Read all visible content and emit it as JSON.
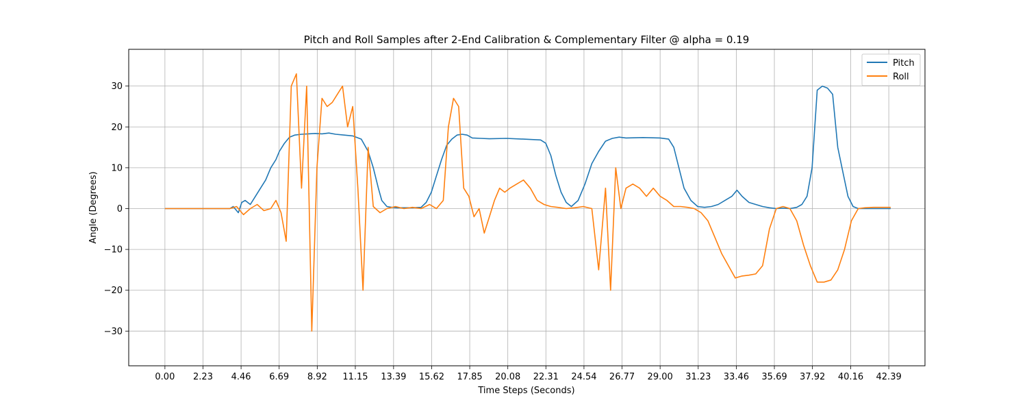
{
  "chart_data": {
    "type": "line",
    "title": "Pitch and Roll Samples after 2-End Calibration & Complementary Filter @ alpha = 0.19",
    "xlabel": "Time Steps (Seconds)",
    "ylabel": "Angle (Degrees)",
    "xlim": [
      -2.12,
      44.51
    ],
    "ylim": [
      -38.5,
      39.0
    ],
    "xticks": [
      0.0,
      2.23,
      4.46,
      6.69,
      8.92,
      11.15,
      13.39,
      15.62,
      17.85,
      20.08,
      22.31,
      24.54,
      26.77,
      29.0,
      31.23,
      33.46,
      35.69,
      37.92,
      40.16,
      42.39
    ],
    "xtick_labels": [
      "0.00",
      "2.23",
      "4.46",
      "6.69",
      "8.92",
      "11.15",
      "13.39",
      "15.62",
      "17.85",
      "20.08",
      "22.31",
      "24.54",
      "26.77",
      "29.00",
      "31.23",
      "33.46",
      "35.69",
      "37.92",
      "40.16",
      "42.39"
    ],
    "yticks": [
      -30,
      -20,
      -10,
      0,
      10,
      20,
      30
    ],
    "ytick_labels": [
      "−30",
      "−20",
      "−10",
      "0",
      "10",
      "20",
      "30"
    ],
    "grid": true,
    "legend_position": "top-right",
    "series": [
      {
        "name": "Pitch",
        "color": "#1f77b4",
        "x": [
          0.0,
          3.8,
          4.0,
          4.3,
          4.5,
          4.7,
          5.0,
          5.3,
          5.6,
          5.9,
          6.2,
          6.5,
          6.7,
          7.0,
          7.3,
          7.6,
          8.0,
          8.4,
          8.8,
          9.2,
          9.6,
          10.0,
          10.5,
          11.0,
          11.5,
          11.9,
          12.2,
          12.5,
          12.7,
          13.0,
          13.3,
          13.6,
          14.0,
          14.5,
          15.0,
          15.3,
          15.6,
          15.9,
          16.2,
          16.5,
          16.8,
          17.1,
          17.4,
          17.7,
          18.0,
          18.5,
          19.0,
          20.0,
          21.0,
          22.0,
          22.3,
          22.6,
          22.9,
          23.2,
          23.5,
          23.8,
          24.2,
          24.6,
          25.0,
          25.4,
          25.8,
          26.2,
          26.6,
          27.0,
          28.0,
          29.0,
          29.5,
          29.8,
          30.1,
          30.4,
          30.8,
          31.2,
          31.6,
          32.0,
          32.4,
          32.8,
          33.2,
          33.5,
          33.8,
          34.2,
          34.6,
          35.0,
          35.4,
          35.8,
          36.2,
          36.6,
          37.0,
          37.3,
          37.6,
          37.9,
          38.2,
          38.5,
          38.8,
          39.1,
          39.4,
          39.7,
          40.0,
          40.3,
          40.6,
          41.0,
          41.5,
          42.0,
          42.5
        ],
        "y": [
          0.0,
          0.0,
          0.5,
          -1.0,
          1.5,
          2.0,
          1.0,
          3.0,
          5.0,
          7.0,
          10.0,
          12.0,
          14.0,
          16.0,
          17.5,
          18.0,
          18.2,
          18.3,
          18.4,
          18.3,
          18.5,
          18.2,
          18.0,
          17.8,
          17.0,
          14.0,
          10.0,
          5.0,
          2.0,
          0.5,
          0.3,
          0.2,
          0.2,
          0.2,
          0.3,
          1.5,
          4.0,
          8.0,
          12.0,
          15.5,
          17.0,
          18.0,
          18.2,
          18.0,
          17.3,
          17.2,
          17.1,
          17.2,
          17.0,
          16.8,
          16.0,
          13.0,
          8.0,
          4.0,
          1.5,
          0.5,
          2.0,
          6.0,
          11.0,
          14.0,
          16.5,
          17.2,
          17.5,
          17.3,
          17.4,
          17.3,
          17.0,
          15.0,
          10.0,
          5.0,
          2.0,
          0.5,
          0.3,
          0.5,
          1.0,
          2.0,
          3.0,
          4.5,
          3.0,
          1.5,
          1.0,
          0.5,
          0.2,
          0.0,
          0.1,
          0.0,
          0.3,
          1.0,
          3.0,
          10.0,
          29.0,
          30.0,
          29.5,
          28.0,
          15.0,
          9.0,
          3.0,
          0.5,
          0.0,
          0.0,
          0.0,
          0.0,
          0.0
        ]
      },
      {
        "name": "Roll",
        "color": "#ff7f0e",
        "x": [
          0.0,
          3.8,
          4.2,
          4.6,
          5.0,
          5.4,
          5.8,
          6.2,
          6.5,
          6.8,
          7.1,
          7.4,
          7.7,
          8.0,
          8.3,
          8.6,
          8.9,
          9.2,
          9.5,
          9.8,
          10.1,
          10.4,
          10.7,
          11.0,
          11.3,
          11.6,
          11.9,
          12.2,
          12.6,
          13.0,
          13.5,
          14.0,
          14.5,
          15.0,
          15.5,
          15.9,
          16.3,
          16.6,
          16.9,
          17.2,
          17.5,
          17.8,
          18.1,
          18.4,
          18.7,
          19.0,
          19.3,
          19.6,
          19.9,
          20.2,
          20.6,
          21.0,
          21.4,
          21.8,
          22.2,
          22.6,
          23.0,
          23.5,
          24.0,
          24.5,
          25.0,
          25.4,
          25.8,
          26.1,
          26.4,
          26.7,
          27.0,
          27.4,
          27.8,
          28.2,
          28.6,
          29.0,
          29.4,
          29.8,
          30.2,
          30.6,
          31.0,
          31.4,
          31.8,
          32.2,
          32.6,
          33.0,
          33.4,
          33.8,
          34.2,
          34.6,
          35.0,
          35.4,
          35.8,
          36.2,
          36.6,
          37.0,
          37.4,
          37.8,
          38.2,
          38.6,
          39.0,
          39.4,
          39.8,
          40.2,
          40.6,
          41.0,
          41.5,
          42.0,
          42.5
        ],
        "y": [
          0.0,
          0.0,
          0.5,
          -1.5,
          0.0,
          1.0,
          -0.5,
          0.0,
          2.0,
          -1.0,
          -8.0,
          30.0,
          33.0,
          5.0,
          30.0,
          -30.0,
          10.0,
          27.0,
          25.0,
          26.0,
          28.0,
          30.0,
          20.0,
          25.0,
          5.0,
          -20.0,
          15.0,
          0.5,
          -1.0,
          0.0,
          0.5,
          0.0,
          0.3,
          0.0,
          1.0,
          0.0,
          2.0,
          20.0,
          27.0,
          25.0,
          5.0,
          3.0,
          -2.0,
          0.0,
          -6.0,
          -2.0,
          2.0,
          5.0,
          4.0,
          5.0,
          6.0,
          7.0,
          5.0,
          2.0,
          1.0,
          0.5,
          0.3,
          0.0,
          0.2,
          0.5,
          0.0,
          -15.0,
          5.0,
          -20.0,
          10.0,
          0.0,
          5.0,
          6.0,
          5.0,
          3.0,
          5.0,
          3.0,
          2.0,
          0.5,
          0.5,
          0.3,
          0.0,
          -1.0,
          -3.0,
          -7.0,
          -11.0,
          -14.0,
          -17.0,
          -16.5,
          -16.3,
          -16.0,
          -14.0,
          -5.0,
          0.0,
          0.5,
          0.0,
          -3.0,
          -9.0,
          -14.0,
          -18.0,
          -18.0,
          -17.5,
          -15.0,
          -10.0,
          -3.0,
          0.0,
          0.2,
          0.3,
          0.3,
          0.3
        ]
      }
    ]
  }
}
